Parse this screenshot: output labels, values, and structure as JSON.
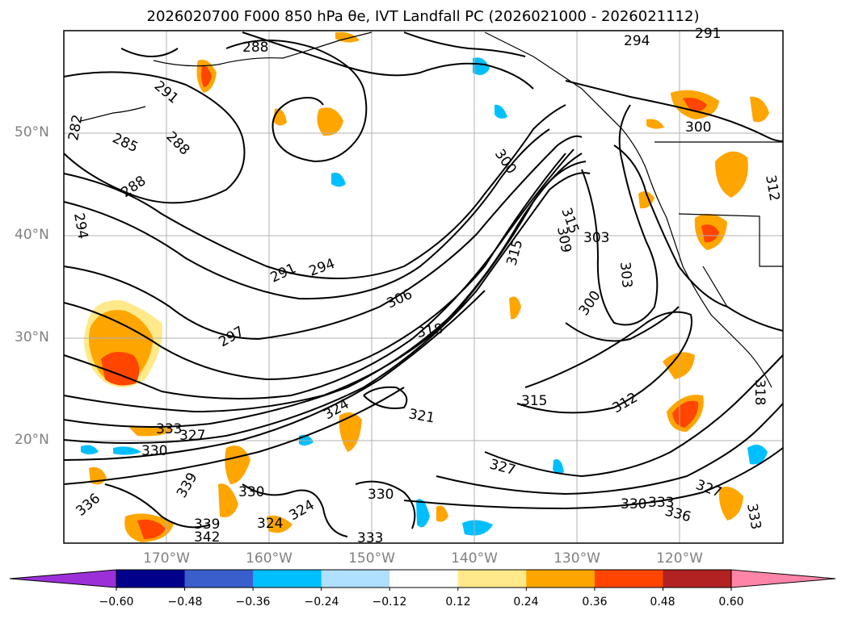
{
  "title": "2026020700 F000 850 hPa θe, IVT Landfall PC (2026021000 - 2026021112)",
  "map": {
    "lat_labels": [
      "50°N",
      "40°N",
      "30°N",
      "20°N"
    ],
    "lon_labels": [
      "170°W",
      "160°W",
      "150°W",
      "140°W",
      "130°W",
      "120°W"
    ],
    "contour_labels": [
      "288",
      "291",
      "282",
      "285",
      "288",
      "288",
      "294",
      "291",
      "294",
      "297",
      "306",
      "318",
      "315",
      "309",
      "315",
      "303",
      "300",
      "303",
      "300",
      "294",
      "291",
      "300",
      "312",
      "318",
      "315",
      "312",
      "321",
      "324",
      "327",
      "333",
      "330",
      "327",
      "330",
      "336",
      "333",
      "330",
      "324",
      "324",
      "339",
      "342",
      "330",
      "333",
      "327",
      "333",
      "336",
      "339"
    ],
    "land_style": "coastline outlines",
    "grid": true
  },
  "colorbar": {
    "tick_labels": [
      "−0.60",
      "−0.48",
      "−0.36",
      "−0.24",
      "−0.12",
      "0.12",
      "0.24",
      "0.36",
      "0.48",
      "0.60"
    ],
    "colors": [
      "#9b30d9",
      "#00008b",
      "#3a5fcd",
      "#00bfff",
      "#b0e0ff",
      "#ffffff",
      "#ffe98a",
      "#ffa500",
      "#ff4500",
      "#b22222",
      "#ff85a8"
    ],
    "extend": "both"
  }
}
